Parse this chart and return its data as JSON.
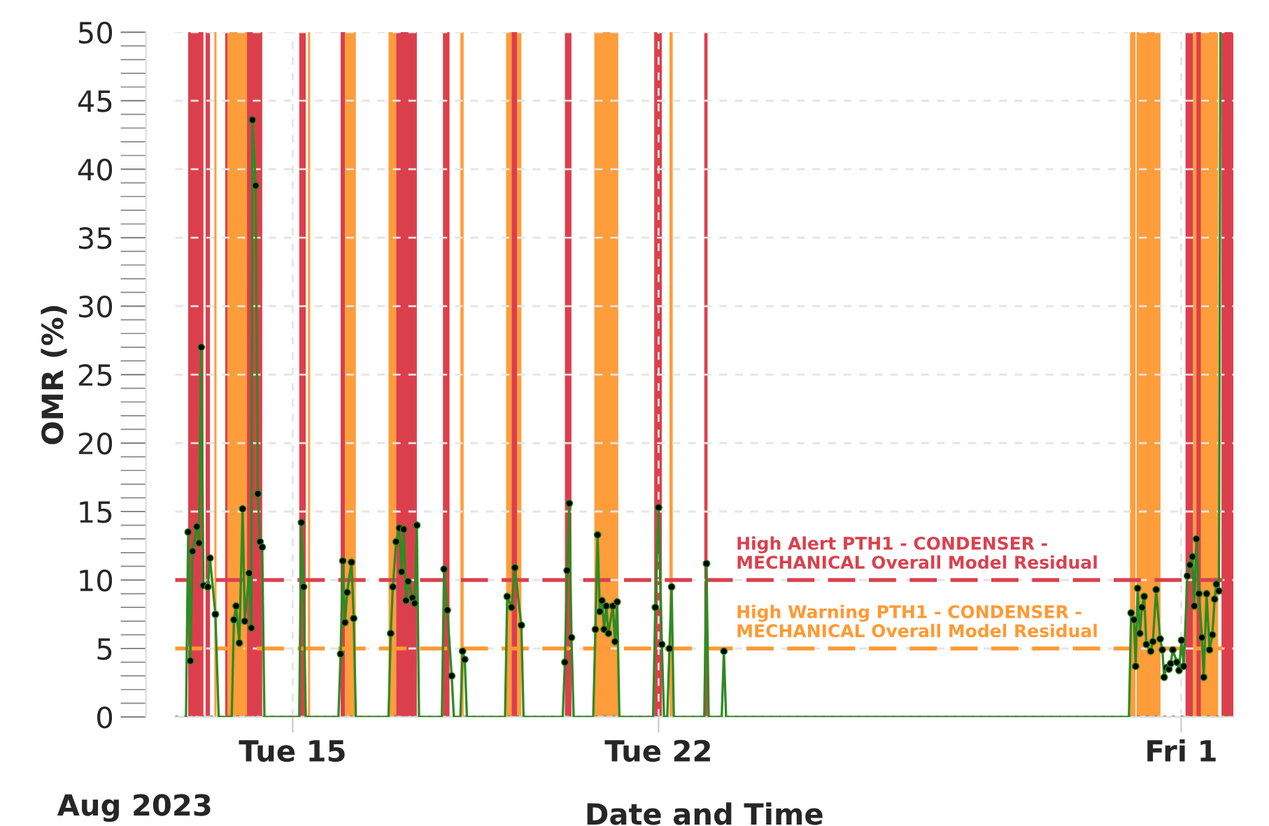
{
  "chart_data": {
    "type": "line",
    "xlabel": "Date and Time",
    "ylabel": "OMR (%)",
    "annotations": [
      "Aug 2023"
    ],
    "xlim": [
      "2023-08-12T18:00",
      "2023-09-02T00:00"
    ],
    "xticks": [
      {
        "value": "2023-08-15",
        "label": "Tue 15"
      },
      {
        "value": "2023-08-22",
        "label": "Tue 22"
      },
      {
        "value": "2023-09-01",
        "label": "Fri 1"
      }
    ],
    "ylim": [
      0,
      50
    ],
    "yticks": [
      0,
      5,
      10,
      15,
      20,
      25,
      30,
      35,
      40,
      45,
      50
    ],
    "grid": true,
    "series": [
      {
        "color": "#2e8b22",
        "line_style": "solid",
        "marker": "none",
        "x": [
          "2023-08-12T23:00",
          "2023-08-13T00:00",
          "2023-08-13T01:00",
          "2023-08-13T02:00",
          "2023-08-13T04:00",
          "2023-08-13T05:00",
          "2023-08-13T06:00",
          "2023-08-13T07:00",
          "2023-08-13T09:00",
          "2023-08-13T10:00",
          "2023-08-13T12:30",
          "2023-08-13T14:00",
          "2023-08-13T20:00",
          "2023-08-13T21:00",
          "2023-08-13T22:00",
          "2023-08-13T23:30",
          "2023-08-14T01:00",
          "2023-08-14T02:00",
          "2023-08-14T04:00",
          "2023-08-14T05:00",
          "2023-08-14T05:30",
          "2023-08-14T07:00",
          "2023-08-14T08:00",
          "2023-08-14T09:00",
          "2023-08-14T10:00",
          "2023-08-14T11:00",
          "2023-08-15T03:00",
          "2023-08-15T04:00",
          "2023-08-15T05:00",
          "2023-08-15T06:00",
          "2023-08-15T21:00",
          "2023-08-15T22:00",
          "2023-08-15T23:00",
          "2023-08-16T00:00",
          "2023-08-16T01:00",
          "2023-08-16T03:00",
          "2023-08-16T04:00",
          "2023-08-16T05:00",
          "2023-08-16T20:00",
          "2023-08-16T21:00",
          "2023-08-16T22:00",
          "2023-08-16T23:30",
          "2023-08-17T01:00",
          "2023-08-17T02:00",
          "2023-08-17T03:00",
          "2023-08-17T04:00",
          "2023-08-17T05:00",
          "2023-08-17T07:00",
          "2023-08-17T08:00",
          "2023-08-17T09:00",
          "2023-08-17T10:00",
          "2023-08-17T20:30",
          "2023-08-17T21:30",
          "2023-08-17T23:00",
          "2023-08-18T01:00",
          "2023-08-18T02:00",
          "2023-08-18T05:00",
          "2023-08-18T06:00",
          "2023-08-18T07:00",
          "2023-08-18T08:00",
          "2023-08-19T01:30",
          "2023-08-19T02:30",
          "2023-08-19T04:30",
          "2023-08-19T06:00",
          "2023-08-19T09:00",
          "2023-08-19T10:00",
          "2023-08-20T04:00",
          "2023-08-20T05:00",
          "2023-08-20T06:00",
          "2023-08-20T07:00",
          "2023-08-20T08:00",
          "2023-08-20T09:00",
          "2023-08-20T18:00",
          "2023-08-20T19:00",
          "2023-08-20T20:00",
          "2023-08-20T21:00",
          "2023-08-20T22:00",
          "2023-08-20T23:00",
          "2023-08-21T00:00",
          "2023-08-21T01:00",
          "2023-08-21T03:00",
          "2023-08-21T04:00",
          "2023-08-21T05:00",
          "2023-08-21T06:00",
          "2023-08-21T21:30",
          "2023-08-21T22:30",
          "2023-08-22T00:00",
          "2023-08-22T01:30",
          "2023-08-22T02:30",
          "2023-08-22T04:00",
          "2023-08-22T05:00",
          "2023-08-22T06:00",
          "2023-08-22T07:00",
          "2023-08-22T21:00",
          "2023-08-22T22:00",
          "2023-08-22T23:00",
          "2023-08-23T05:00",
          "2023-08-23T06:00",
          "2023-08-23T07:00",
          "2023-08-31T00:00",
          "2023-08-31T01:00",
          "2023-08-31T02:20",
          "2023-08-31T03:05",
          "2023-08-31T04:00",
          "2023-08-31T05:00",
          "2023-08-31T06:00",
          "2023-08-31T07:00",
          "2023-08-31T08:00",
          "2023-08-31T10:00",
          "2023-08-31T11:00",
          "2023-08-31T12:30",
          "2023-08-31T14:20",
          "2023-08-31T15:20",
          "2023-08-31T16:10",
          "2023-08-31T17:10",
          "2023-08-31T18:20",
          "2023-08-31T19:10",
          "2023-08-31T20:10",
          "2023-08-31T22:00",
          "2023-08-31T23:00",
          "2023-09-01T00:10",
          "2023-09-01T01:10",
          "2023-09-01T02:50",
          "2023-09-01T04:00",
          "2023-09-01T05:10",
          "2023-09-01T06:00",
          "2023-09-01T07:00",
          "2023-09-01T08:10",
          "2023-09-01T09:30",
          "2023-09-01T10:20",
          "2023-09-01T11:40",
          "2023-09-01T13:00",
          "2023-09-01T14:20",
          "2023-09-01T15:20",
          "2023-09-01T16:10",
          "2023-09-01T17:20",
          "2023-09-01T18:00"
        ],
        "values": [
          0,
          13.5,
          4.1,
          12.1,
          13.9,
          12.7,
          27.0,
          9.6,
          9.5,
          11.6,
          7.5,
          0,
          0,
          7.1,
          8.1,
          5.4,
          15.2,
          7.0,
          10.5,
          6.5,
          43.6,
          38.8,
          16.3,
          12.8,
          12.4,
          0,
          0,
          14.2,
          9.5,
          0,
          0,
          4.6,
          11.4,
          6.9,
          9.1,
          11.3,
          7.2,
          0,
          0,
          6.1,
          9.5,
          12.8,
          13.8,
          10.6,
          13.7,
          8.5,
          9.9,
          8.7,
          8.3,
          14.0,
          0,
          0,
          10.8,
          7.8,
          3.0,
          0,
          0,
          4.8,
          4.2,
          0,
          0,
          8.8,
          8.0,
          10.9,
          6.7,
          0,
          0,
          4.0,
          10.7,
          15.6,
          5.8,
          0,
          0,
          6.4,
          13.3,
          7.7,
          8.5,
          6.4,
          8.1,
          6.1,
          8.1,
          5.5,
          8.4,
          0,
          0,
          8.0,
          15.3,
          5.3,
          0,
          0,
          5.0,
          9.5,
          0,
          0,
          11.2,
          0,
          0,
          4.8,
          0,
          0,
          7.6,
          7.1,
          3.7,
          9.4,
          6.1,
          8.0,
          8.8,
          5.3,
          4.8,
          5.5,
          9.3,
          5.7,
          4.9,
          2.9,
          3.6,
          3.5,
          3.9,
          4.9,
          4.0,
          3.4,
          5.6,
          3.7,
          10.3,
          11.1,
          11.7,
          8.1,
          13.0,
          9.0,
          5.8,
          2.9,
          9.0,
          4.9,
          6.0,
          8.6,
          9.7,
          9.2,
          50
        ]
      },
      {
        "type": "scatter",
        "color": "#000000",
        "marker": "circle",
        "x": [
          "2023-08-13T00:00",
          "2023-08-13T01:00",
          "2023-08-13T02:00",
          "2023-08-13T04:00",
          "2023-08-13T05:00",
          "2023-08-13T06:00",
          "2023-08-13T07:00",
          "2023-08-13T09:00",
          "2023-08-13T10:00",
          "2023-08-13T12:30",
          "2023-08-13T21:00",
          "2023-08-13T22:00",
          "2023-08-13T23:30",
          "2023-08-14T01:00",
          "2023-08-14T02:00",
          "2023-08-14T04:00",
          "2023-08-14T05:00",
          "2023-08-14T05:30",
          "2023-08-14T07:00",
          "2023-08-14T08:00",
          "2023-08-14T09:00",
          "2023-08-14T10:00",
          "2023-08-15T04:00",
          "2023-08-15T05:00",
          "2023-08-15T22:00",
          "2023-08-15T23:00",
          "2023-08-16T00:00",
          "2023-08-16T01:00",
          "2023-08-16T03:00",
          "2023-08-16T04:00",
          "2023-08-16T21:00",
          "2023-08-16T22:00",
          "2023-08-16T23:30",
          "2023-08-17T01:00",
          "2023-08-17T02:00",
          "2023-08-17T03:00",
          "2023-08-17T04:00",
          "2023-08-17T05:00",
          "2023-08-17T07:00",
          "2023-08-17T08:00",
          "2023-08-17T09:00",
          "2023-08-17T21:30",
          "2023-08-17T23:00",
          "2023-08-18T01:00",
          "2023-08-18T06:00",
          "2023-08-18T07:00",
          "2023-08-19T02:30",
          "2023-08-19T04:30",
          "2023-08-19T06:00",
          "2023-08-19T09:00",
          "2023-08-20T05:00",
          "2023-08-20T06:00",
          "2023-08-20T07:00",
          "2023-08-20T08:00",
          "2023-08-20T19:00",
          "2023-08-20T20:00",
          "2023-08-20T21:00",
          "2023-08-20T22:00",
          "2023-08-20T23:00",
          "2023-08-21T00:00",
          "2023-08-21T01:00",
          "2023-08-21T03:00",
          "2023-08-21T04:00",
          "2023-08-21T05:00",
          "2023-08-21T22:30",
          "2023-08-22T00:00",
          "2023-08-22T01:30",
          "2023-08-22T05:00",
          "2023-08-22T06:00",
          "2023-08-22T22:00",
          "2023-08-23T06:00",
          "2023-08-31T01:00",
          "2023-08-31T02:20",
          "2023-08-31T03:05",
          "2023-08-31T04:00",
          "2023-08-31T05:00",
          "2023-08-31T06:00",
          "2023-08-31T07:00",
          "2023-08-31T08:00",
          "2023-08-31T10:00",
          "2023-08-31T11:00",
          "2023-08-31T12:30",
          "2023-08-31T14:20",
          "2023-08-31T15:20",
          "2023-08-31T16:10",
          "2023-08-31T17:10",
          "2023-08-31T18:20",
          "2023-08-31T19:10",
          "2023-08-31T20:10",
          "2023-08-31T22:00",
          "2023-08-31T23:00",
          "2023-09-01T00:10",
          "2023-09-01T01:10",
          "2023-09-01T02:50",
          "2023-09-01T04:00",
          "2023-09-01T05:10",
          "2023-09-01T06:00",
          "2023-09-01T07:00",
          "2023-09-01T08:10",
          "2023-09-01T09:30",
          "2023-09-01T10:20",
          "2023-09-01T11:40",
          "2023-09-01T13:00",
          "2023-09-01T14:20",
          "2023-09-01T15:20",
          "2023-09-01T16:10",
          "2023-09-01T17:20"
        ],
        "values": [
          13.5,
          4.1,
          12.1,
          13.9,
          12.7,
          27.0,
          9.6,
          9.5,
          11.6,
          7.5,
          7.1,
          8.1,
          5.4,
          15.2,
          7.0,
          10.5,
          6.5,
          43.6,
          38.8,
          16.3,
          12.8,
          12.4,
          14.2,
          9.5,
          4.6,
          11.4,
          6.9,
          9.1,
          11.3,
          7.2,
          6.1,
          9.5,
          12.8,
          13.8,
          10.6,
          13.7,
          8.5,
          9.9,
          8.7,
          8.3,
          14.0,
          10.8,
          7.8,
          3.0,
          4.8,
          4.2,
          8.8,
          8.0,
          10.9,
          6.7,
          4.0,
          10.7,
          15.6,
          5.8,
          6.4,
          13.3,
          7.7,
          8.5,
          6.4,
          8.1,
          6.1,
          8.1,
          5.5,
          8.4,
          8.0,
          15.3,
          5.3,
          5.0,
          9.5,
          11.2,
          4.8,
          7.6,
          7.1,
          3.7,
          9.4,
          6.1,
          8.0,
          8.8,
          5.3,
          4.8,
          5.5,
          9.3,
          5.7,
          4.9,
          2.9,
          3.6,
          3.5,
          3.9,
          4.9,
          4.0,
          3.4,
          5.6,
          3.7,
          10.3,
          11.1,
          11.7,
          8.1,
          13.0,
          9.0,
          5.8,
          2.9,
          9.0,
          4.9,
          6.0,
          8.6,
          9.7,
          9.2
        ]
      }
    ],
    "ref_lines": [
      {
        "axis": "y",
        "value": 10,
        "label": "High Alert PTH1 - CONDENSER - MECHANICAL Overall Model Residual",
        "color": "#d9414e",
        "line_style": "dashed"
      },
      {
        "axis": "y",
        "value": 5,
        "label": "High Warning PTH1 - CONDENSER - MECHANICAL Overall Model Residual",
        "color": "#ff9933",
        "line_style": "dashed"
      },
      {
        "axis": "y",
        "value": 0,
        "color": "#2e6b2e",
        "line_style": "dotted"
      }
    ],
    "bands": [
      {
        "axis": "x",
        "from": "2023-08-13T00:00",
        "to": "2023-08-13T07:00",
        "color": "#dc3f4c"
      },
      {
        "axis": "x",
        "from": "2023-08-13T08:00",
        "to": "2023-08-13T10:00",
        "color": "#dc3f4c"
      },
      {
        "axis": "x",
        "from": "2023-08-13T12:00",
        "to": "2023-08-13T13:00",
        "color": "#ff9d3b"
      },
      {
        "axis": "x",
        "from": "2023-08-13T17:00",
        "to": "2023-08-14T03:00",
        "color": "#ff9d3b"
      },
      {
        "axis": "x",
        "from": "2023-08-13T17:00",
        "to": "2023-08-13T18:00",
        "color": "#dc3f4c"
      },
      {
        "axis": "x",
        "from": "2023-08-14T03:00",
        "to": "2023-08-14T10:00",
        "color": "#dc3f4c"
      },
      {
        "axis": "x",
        "from": "2023-08-15T03:00",
        "to": "2023-08-15T06:00",
        "color": "#dc3f4c"
      },
      {
        "axis": "x",
        "from": "2023-08-15T07:00",
        "to": "2023-08-15T08:00",
        "color": "#ff9d3b"
      },
      {
        "axis": "x",
        "from": "2023-08-15T22:00",
        "to": "2023-08-16T00:00",
        "color": "#dc3f4c"
      },
      {
        "axis": "x",
        "from": "2023-08-16T00:00",
        "to": "2023-08-16T05:00",
        "color": "#ff9d3b"
      },
      {
        "axis": "x",
        "from": "2023-08-16T20:00",
        "to": "2023-08-16T23:30",
        "color": "#ff9d3b"
      },
      {
        "axis": "x",
        "from": "2023-08-16T23:30",
        "to": "2023-08-17T09:00",
        "color": "#dc3f4c"
      },
      {
        "axis": "x",
        "from": "2023-08-17T21:00",
        "to": "2023-08-18T00:00",
        "color": "#dc3f4c"
      },
      {
        "axis": "x",
        "from": "2023-08-18T05:00",
        "to": "2023-08-18T06:30",
        "color": "#ff9d3b"
      },
      {
        "axis": "x",
        "from": "2023-08-19T02:00",
        "to": "2023-08-19T04:30",
        "color": "#ff9d3b"
      },
      {
        "axis": "x",
        "from": "2023-08-19T04:30",
        "to": "2023-08-19T07:00",
        "color": "#dc3f4c"
      },
      {
        "axis": "x",
        "from": "2023-08-19T07:00",
        "to": "2023-08-19T09:00",
        "color": "#ff9d3b"
      },
      {
        "axis": "x",
        "from": "2023-08-20T05:00",
        "to": "2023-08-20T08:00",
        "color": "#dc3f4c"
      },
      {
        "axis": "x",
        "from": "2023-08-20T18:30",
        "to": "2023-08-21T05:30",
        "color": "#ff9d3b"
      },
      {
        "axis": "x",
        "from": "2023-08-21T22:00",
        "to": "2023-08-22T01:30",
        "color": "#dc3f4c"
      },
      {
        "axis": "x",
        "from": "2023-08-22T05:00",
        "to": "2023-08-22T06:30",
        "color": "#ff9d3b"
      },
      {
        "axis": "x",
        "from": "2023-08-22T21:00",
        "to": "2023-08-22T22:30",
        "color": "#dc3f4c"
      },
      {
        "axis": "x",
        "from": "2023-08-31T00:30",
        "to": "2023-08-31T03:00",
        "color": "#ff9d3b"
      },
      {
        "axis": "x",
        "from": "2023-08-31T03:30",
        "to": "2023-08-31T14:30",
        "color": "#ff9d3b"
      },
      {
        "axis": "x",
        "from": "2023-09-01T02:00",
        "to": "2023-09-01T05:30",
        "color": "#dc3f4c"
      },
      {
        "axis": "x",
        "from": "2023-09-01T05:30",
        "to": "2023-09-01T17:00",
        "color": "#ff9d3b"
      },
      {
        "axis": "x",
        "from": "2023-09-01T07:00",
        "to": "2023-09-01T09:00",
        "color": "#dc3f4c"
      },
      {
        "axis": "x",
        "from": "2023-09-01T18:30",
        "to": "2023-09-02T00:00",
        "color": "#dc3f4c"
      }
    ]
  }
}
